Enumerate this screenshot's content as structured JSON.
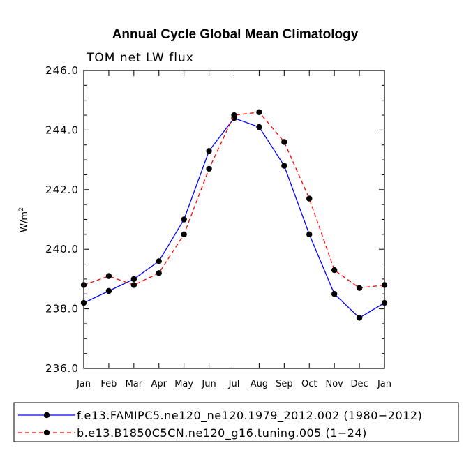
{
  "chart_data": {
    "type": "line",
    "title": "Annual Cycle Global Mean Climatology",
    "subtitle": "TOM net LW flux",
    "ylabel_base": "W/m",
    "ylabel_sup": "2",
    "xlabel": "",
    "ylim": [
      236.0,
      246.0
    ],
    "yticks": [
      "236.0",
      "238.0",
      "240.0",
      "242.0",
      "244.0",
      "246.0"
    ],
    "ytick_values": [
      236.0,
      238.0,
      240.0,
      242.0,
      244.0,
      246.0
    ],
    "categories": [
      "Jan",
      "Feb",
      "Mar",
      "Apr",
      "May",
      "Jun",
      "Jul",
      "Aug",
      "Sep",
      "Oct",
      "Nov",
      "Dec",
      "Jan"
    ],
    "series": [
      {
        "name": "f.e13.FAMIPC5.ne120_ne120.1979_2012.002 (1980−2012)",
        "color": "#0000ff",
        "dash": "solid",
        "values": [
          238.2,
          238.6,
          239.0,
          239.6,
          241.0,
          243.3,
          244.4,
          244.1,
          242.8,
          240.5,
          238.5,
          237.7,
          238.2
        ]
      },
      {
        "name": "b.e13.B1850C5CN.ne120_g16.tuning.005 (1−24)",
        "color": "#ff0000",
        "dash": "dashed",
        "values": [
          238.8,
          239.1,
          238.8,
          239.2,
          240.5,
          242.7,
          244.5,
          244.6,
          243.6,
          241.7,
          239.3,
          238.7,
          238.8
        ]
      }
    ]
  }
}
